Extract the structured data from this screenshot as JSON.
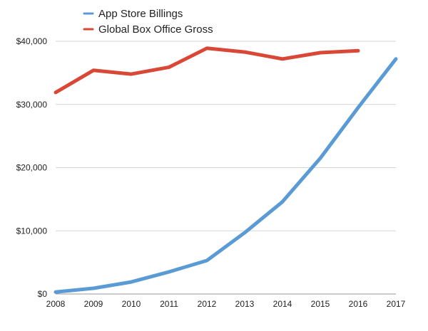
{
  "chart_data": {
    "type": "line",
    "title": "",
    "xlabel": "",
    "ylabel": "",
    "x": [
      2008,
      2009,
      2010,
      2011,
      2012,
      2013,
      2014,
      2015,
      2016,
      2017
    ],
    "x_tick_labels": [
      "2008",
      "2009",
      "2010",
      "2011",
      "2012",
      "2013",
      "2014",
      "2015",
      "2016",
      "2017"
    ],
    "ylim": [
      0,
      40000
    ],
    "y_ticks": [
      0,
      10000,
      20000,
      30000,
      40000
    ],
    "y_tick_labels": [
      "$0",
      "$10,000",
      "$20,000",
      "$30,000",
      "$40,000"
    ],
    "grid": true,
    "legend_position": "top-left",
    "series": [
      {
        "name": "App Store Billings",
        "color": "#5b9bd5",
        "values": [
          300,
          900,
          1900,
          3500,
          5300,
          9700,
          14600,
          21500,
          29500,
          37200
        ]
      },
      {
        "name": "Global Box Office Gross",
        "color": "#d94836",
        "values": [
          31900,
          35400,
          34800,
          35900,
          38900,
          38300,
          37200,
          38200,
          38500,
          null
        ]
      }
    ]
  }
}
